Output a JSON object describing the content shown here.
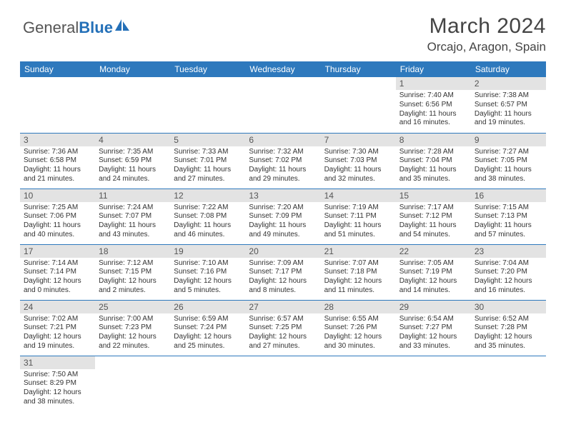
{
  "logo": {
    "part1": "General",
    "part2": "Blue"
  },
  "title": "March 2024",
  "location": "Orcajo, Aragon, Spain",
  "colors": {
    "header_bg": "#2e79bd",
    "header_fg": "#ffffff",
    "daynum_bg": "#e3e3e3",
    "rule": "#2e79bd",
    "logo_blue": "#2470b8"
  },
  "day_labels": [
    "Sunday",
    "Monday",
    "Tuesday",
    "Wednesday",
    "Thursday",
    "Friday",
    "Saturday"
  ],
  "weeks": [
    [
      null,
      null,
      null,
      null,
      null,
      {
        "n": "1",
        "sr": "Sunrise: 7:40 AM",
        "ss": "Sunset: 6:56 PM",
        "dl": "Daylight: 11 hours and 16 minutes."
      },
      {
        "n": "2",
        "sr": "Sunrise: 7:38 AM",
        "ss": "Sunset: 6:57 PM",
        "dl": "Daylight: 11 hours and 19 minutes."
      }
    ],
    [
      {
        "n": "3",
        "sr": "Sunrise: 7:36 AM",
        "ss": "Sunset: 6:58 PM",
        "dl": "Daylight: 11 hours and 21 minutes."
      },
      {
        "n": "4",
        "sr": "Sunrise: 7:35 AM",
        "ss": "Sunset: 6:59 PM",
        "dl": "Daylight: 11 hours and 24 minutes."
      },
      {
        "n": "5",
        "sr": "Sunrise: 7:33 AM",
        "ss": "Sunset: 7:01 PM",
        "dl": "Daylight: 11 hours and 27 minutes."
      },
      {
        "n": "6",
        "sr": "Sunrise: 7:32 AM",
        "ss": "Sunset: 7:02 PM",
        "dl": "Daylight: 11 hours and 29 minutes."
      },
      {
        "n": "7",
        "sr": "Sunrise: 7:30 AM",
        "ss": "Sunset: 7:03 PM",
        "dl": "Daylight: 11 hours and 32 minutes."
      },
      {
        "n": "8",
        "sr": "Sunrise: 7:28 AM",
        "ss": "Sunset: 7:04 PM",
        "dl": "Daylight: 11 hours and 35 minutes."
      },
      {
        "n": "9",
        "sr": "Sunrise: 7:27 AM",
        "ss": "Sunset: 7:05 PM",
        "dl": "Daylight: 11 hours and 38 minutes."
      }
    ],
    [
      {
        "n": "10",
        "sr": "Sunrise: 7:25 AM",
        "ss": "Sunset: 7:06 PM",
        "dl": "Daylight: 11 hours and 40 minutes."
      },
      {
        "n": "11",
        "sr": "Sunrise: 7:24 AM",
        "ss": "Sunset: 7:07 PM",
        "dl": "Daylight: 11 hours and 43 minutes."
      },
      {
        "n": "12",
        "sr": "Sunrise: 7:22 AM",
        "ss": "Sunset: 7:08 PM",
        "dl": "Daylight: 11 hours and 46 minutes."
      },
      {
        "n": "13",
        "sr": "Sunrise: 7:20 AM",
        "ss": "Sunset: 7:09 PM",
        "dl": "Daylight: 11 hours and 49 minutes."
      },
      {
        "n": "14",
        "sr": "Sunrise: 7:19 AM",
        "ss": "Sunset: 7:11 PM",
        "dl": "Daylight: 11 hours and 51 minutes."
      },
      {
        "n": "15",
        "sr": "Sunrise: 7:17 AM",
        "ss": "Sunset: 7:12 PM",
        "dl": "Daylight: 11 hours and 54 minutes."
      },
      {
        "n": "16",
        "sr": "Sunrise: 7:15 AM",
        "ss": "Sunset: 7:13 PM",
        "dl": "Daylight: 11 hours and 57 minutes."
      }
    ],
    [
      {
        "n": "17",
        "sr": "Sunrise: 7:14 AM",
        "ss": "Sunset: 7:14 PM",
        "dl": "Daylight: 12 hours and 0 minutes."
      },
      {
        "n": "18",
        "sr": "Sunrise: 7:12 AM",
        "ss": "Sunset: 7:15 PM",
        "dl": "Daylight: 12 hours and 2 minutes."
      },
      {
        "n": "19",
        "sr": "Sunrise: 7:10 AM",
        "ss": "Sunset: 7:16 PM",
        "dl": "Daylight: 12 hours and 5 minutes."
      },
      {
        "n": "20",
        "sr": "Sunrise: 7:09 AM",
        "ss": "Sunset: 7:17 PM",
        "dl": "Daylight: 12 hours and 8 minutes."
      },
      {
        "n": "21",
        "sr": "Sunrise: 7:07 AM",
        "ss": "Sunset: 7:18 PM",
        "dl": "Daylight: 12 hours and 11 minutes."
      },
      {
        "n": "22",
        "sr": "Sunrise: 7:05 AM",
        "ss": "Sunset: 7:19 PM",
        "dl": "Daylight: 12 hours and 14 minutes."
      },
      {
        "n": "23",
        "sr": "Sunrise: 7:04 AM",
        "ss": "Sunset: 7:20 PM",
        "dl": "Daylight: 12 hours and 16 minutes."
      }
    ],
    [
      {
        "n": "24",
        "sr": "Sunrise: 7:02 AM",
        "ss": "Sunset: 7:21 PM",
        "dl": "Daylight: 12 hours and 19 minutes."
      },
      {
        "n": "25",
        "sr": "Sunrise: 7:00 AM",
        "ss": "Sunset: 7:23 PM",
        "dl": "Daylight: 12 hours and 22 minutes."
      },
      {
        "n": "26",
        "sr": "Sunrise: 6:59 AM",
        "ss": "Sunset: 7:24 PM",
        "dl": "Daylight: 12 hours and 25 minutes."
      },
      {
        "n": "27",
        "sr": "Sunrise: 6:57 AM",
        "ss": "Sunset: 7:25 PM",
        "dl": "Daylight: 12 hours and 27 minutes."
      },
      {
        "n": "28",
        "sr": "Sunrise: 6:55 AM",
        "ss": "Sunset: 7:26 PM",
        "dl": "Daylight: 12 hours and 30 minutes."
      },
      {
        "n": "29",
        "sr": "Sunrise: 6:54 AM",
        "ss": "Sunset: 7:27 PM",
        "dl": "Daylight: 12 hours and 33 minutes."
      },
      {
        "n": "30",
        "sr": "Sunrise: 6:52 AM",
        "ss": "Sunset: 7:28 PM",
        "dl": "Daylight: 12 hours and 35 minutes."
      }
    ],
    [
      {
        "n": "31",
        "sr": "Sunrise: 7:50 AM",
        "ss": "Sunset: 8:29 PM",
        "dl": "Daylight: 12 hours and 38 minutes."
      },
      null,
      null,
      null,
      null,
      null,
      null
    ]
  ]
}
